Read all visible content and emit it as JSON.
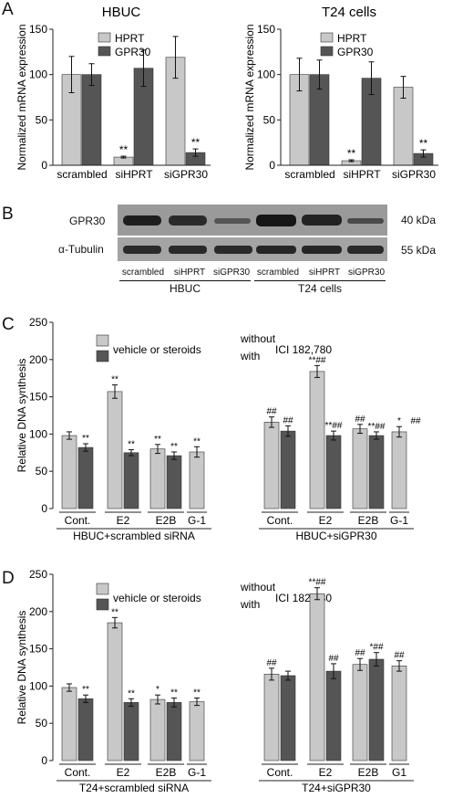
{
  "panels": {
    "A": "A",
    "B": "B",
    "C": "C",
    "D": "D"
  },
  "colors": {
    "light": "#c8c8c8",
    "dark": "#555555",
    "axis": "#222222"
  },
  "chart_data": [
    {
      "id": "A1",
      "type": "bar",
      "title": "HBUC",
      "ylabel": "Normalized mRNA expression",
      "ylim": [
        0,
        150
      ],
      "yticks": [
        0,
        50,
        100,
        150
      ],
      "categories": [
        "scrambled",
        "siHPRT",
        "siGPR30"
      ],
      "legend": [
        "HPRT",
        "GPR30"
      ],
      "series": [
        {
          "name": "HPRT",
          "values": [
            100,
            9,
            119
          ],
          "errors": [
            20,
            1,
            23
          ],
          "marks": [
            "",
            "**",
            ""
          ]
        },
        {
          "name": "GPR30",
          "values": [
            100,
            107,
            14
          ],
          "errors": [
            12,
            20,
            4
          ],
          "marks": [
            "",
            "",
            "**"
          ]
        }
      ]
    },
    {
      "id": "A2",
      "type": "bar",
      "title": "T24 cells",
      "ylabel": "Normalized mRNA expression",
      "ylim": [
        0,
        150
      ],
      "yticks": [
        0,
        50,
        100,
        150
      ],
      "categories": [
        "scrambled",
        "siHPRT",
        "siGPR30"
      ],
      "legend": [
        "HPRT",
        "GPR30"
      ],
      "series": [
        {
          "name": "HPRT",
          "values": [
            100,
            5,
            86
          ],
          "errors": [
            18,
            1,
            12
          ],
          "marks": [
            "",
            "**",
            ""
          ]
        },
        {
          "name": "GPR30",
          "values": [
            100,
            96,
            13
          ],
          "errors": [
            16,
            18,
            4
          ],
          "marks": [
            "",
            "",
            "**"
          ]
        }
      ]
    },
    {
      "id": "C",
      "type": "bar",
      "ylabel": "Relative DNA synthesis",
      "ylim": [
        0,
        250
      ],
      "yticks": [
        0,
        50,
        100,
        150,
        200,
        250
      ],
      "legend": [
        "vehicle or steroids",
        "without",
        "with",
        "ICI 182,780"
      ],
      "groups": [
        {
          "label": "HBUC+scrambled siRNA",
          "categories": [
            "Cont.",
            "E2",
            "E2B",
            "G-1"
          ],
          "light": [
            98,
            157,
            80,
            76
          ],
          "light_err": [
            5,
            9,
            6,
            7
          ],
          "dark": [
            82,
            75,
            71,
            null
          ],
          "dark_err": [
            5,
            4,
            5,
            null
          ],
          "light_marks": [
            "",
            "**",
            "**",
            "**"
          ],
          "dark_marks": [
            "**",
            "**",
            "**",
            ""
          ]
        },
        {
          "label": "HBUC+siGPR30",
          "categories": [
            "Cont.",
            "E2",
            "E2B",
            "G-1"
          ],
          "light": [
            116,
            184,
            107,
            103
          ],
          "light_err": [
            7,
            8,
            6,
            7
          ],
          "dark": [
            104,
            98,
            98,
            null
          ],
          "dark_err": [
            7,
            6,
            5,
            null
          ],
          "light_marks": [
            "##",
            "**##",
            "##",
            "*"
          ],
          "dark_marks": [
            "##",
            "**##",
            "**##",
            "##"
          ]
        }
      ]
    },
    {
      "id": "D",
      "type": "bar",
      "ylabel": "Relative DNA synthesis",
      "ylim": [
        0,
        250
      ],
      "yticks": [
        0,
        50,
        100,
        150,
        200,
        250
      ],
      "legend": [
        "vehicle or steroids",
        "without",
        "with",
        "ICI 182,780"
      ],
      "groups": [
        {
          "label": "T24+scrambled siRNA",
          "categories": [
            "Cont.",
            "E2",
            "E2B",
            "G-1"
          ],
          "light": [
            98,
            185,
            82,
            79
          ],
          "light_err": [
            5,
            7,
            6,
            5
          ],
          "dark": [
            83,
            78,
            78,
            null
          ],
          "dark_err": [
            5,
            5,
            6,
            null
          ],
          "light_marks": [
            "",
            "**",
            "*",
            "**"
          ],
          "dark_marks": [
            "**",
            "**",
            "**",
            ""
          ]
        },
        {
          "label": "T24+siGPR30",
          "categories": [
            "Cont.",
            "E2",
            "E2B",
            "G1"
          ],
          "light": [
            116,
            224,
            129,
            127
          ],
          "light_err": [
            8,
            8,
            8,
            7
          ],
          "dark": [
            114,
            120,
            136,
            null
          ],
          "dark_err": [
            6,
            10,
            9,
            null
          ],
          "light_marks": [
            "##",
            "**##",
            "##",
            "##"
          ],
          "dark_marks": [
            "",
            "##",
            "*##",
            ""
          ]
        }
      ]
    }
  ],
  "blot": {
    "rows": [
      "GPR30",
      "α-Tubulin"
    ],
    "kda": [
      "40 kDa",
      "55 kDa"
    ],
    "lanes": [
      "scrambled",
      "siHPRT",
      "siGPR30",
      "scrambled",
      "siHPRT",
      "siGPR30"
    ],
    "groups": [
      "HBUC",
      "T24 cells"
    ]
  }
}
